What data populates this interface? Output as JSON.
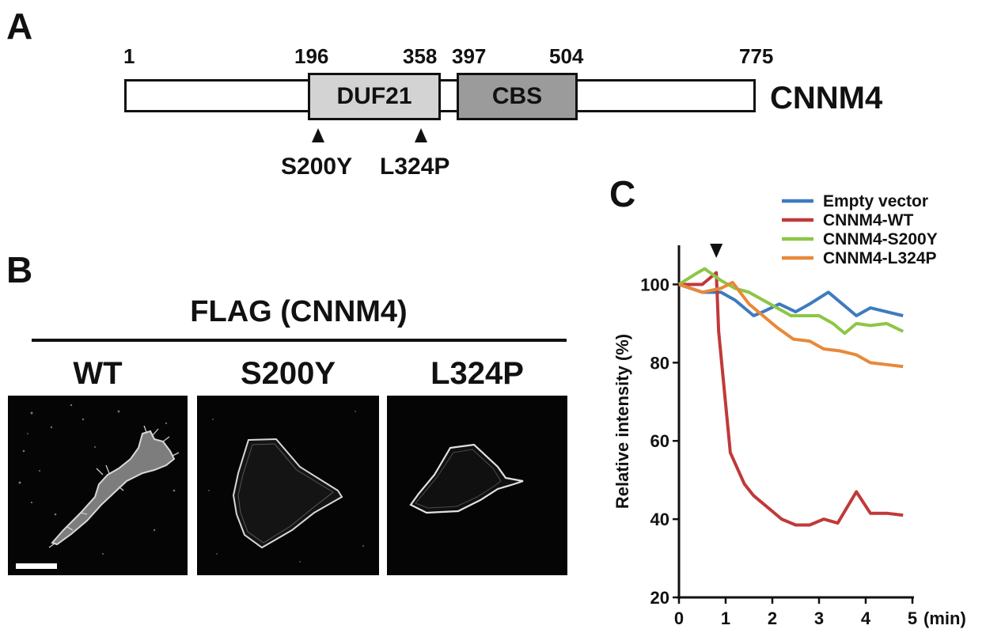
{
  "panel_a": {
    "letter": "A",
    "protein": "CNNM4",
    "positions": {
      "start": "1",
      "duf_start": "196",
      "duf_end": "358",
      "cbs_start": "397",
      "cbs_end": "504",
      "end": "775"
    },
    "domains": {
      "duf": "DUF21",
      "cbs": "CBS"
    },
    "domain_colors": {
      "duf": "#d3d3d3",
      "cbs": "#9b9b9b"
    },
    "mutations": {
      "first": "S200Y",
      "second": "L324P"
    }
  },
  "panel_b": {
    "letter": "B",
    "title": "FLAG (CNNM4)",
    "columns": {
      "wt": "WT",
      "s200y": "S200Y",
      "l324p": "L324P"
    }
  },
  "panel_c": {
    "letter": "C",
    "chart_data": {
      "type": "line",
      "ylabel": "Relative intensity (%)",
      "xunit": "(min)",
      "xlim": [
        0,
        5
      ],
      "ylim": [
        20,
        110
      ],
      "xticks": [
        0,
        1,
        2,
        3,
        4,
        5
      ],
      "yticks": [
        20,
        40,
        60,
        80,
        100
      ],
      "arrow_at_x": 0.8,
      "legend_position": "top-right",
      "x": [
        0,
        0.25,
        0.5,
        0.75,
        0.8,
        1.0,
        1.2,
        1.5,
        1.75,
        2.0,
        2.25,
        2.5,
        2.75,
        3.0,
        3.25,
        3.5,
        3.75,
        4.0,
        4.25,
        4.5,
        4.8
      ],
      "series": [
        {
          "name": "Empty vector",
          "color": "#3e7bbf",
          "x": [
            0,
            0.5,
            0.9,
            1.2,
            1.6,
            1.8,
            2.15,
            2.5,
            2.8,
            3.2,
            3.5,
            3.8,
            4.1,
            4.45,
            4.8
          ],
          "values": [
            100,
            98,
            98,
            96,
            92,
            93,
            95,
            93,
            95,
            98,
            95,
            92,
            94,
            93,
            92
          ]
        },
        {
          "name": "CNNM4-WT",
          "color": "#c0393a",
          "x": [
            0,
            0.5,
            0.8,
            0.85,
            1.1,
            1.4,
            1.6,
            1.9,
            2.2,
            2.5,
            2.8,
            3.1,
            3.4,
            3.6,
            3.8,
            4.1,
            4.45,
            4.8
          ],
          "values": [
            100,
            100,
            103,
            88,
            57,
            49,
            46,
            43,
            40,
            38.5,
            38.5,
            40,
            39,
            43,
            47,
            41.5,
            41.5,
            41
          ]
        },
        {
          "name": "CNNM4-S200Y",
          "color": "#8dc645",
          "x": [
            0,
            0.4,
            0.55,
            0.9,
            1.2,
            1.5,
            1.8,
            2.1,
            2.4,
            2.7,
            3.0,
            3.3,
            3.55,
            3.8,
            4.1,
            4.45,
            4.8
          ],
          "values": [
            100,
            103,
            104,
            101,
            99,
            98,
            96,
            94,
            92,
            92,
            92,
            90,
            87.5,
            90,
            89.5,
            90,
            88
          ]
        },
        {
          "name": "CNNM4-L324P",
          "color": "#e8893a",
          "x": [
            0,
            0.5,
            0.9,
            1.15,
            1.5,
            1.8,
            2.1,
            2.45,
            2.8,
            3.1,
            3.45,
            3.8,
            4.1,
            4.45,
            4.8
          ],
          "values": [
            100,
            98,
            99,
            100.5,
            95,
            92,
            89,
            86,
            85.5,
            83.5,
            83,
            82,
            80,
            79.5,
            79
          ]
        }
      ]
    }
  }
}
